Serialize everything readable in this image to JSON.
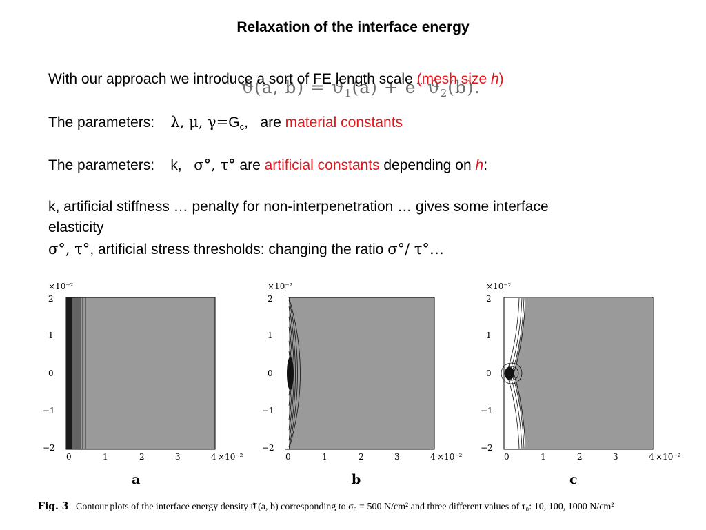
{
  "title": "Relaxation of the interface energy",
  "line1": {
    "text": "With our approach we introduce a sort of FE length scale ",
    "red_open": "(mesh size ",
    "h": "h",
    "red_close": ")"
  },
  "overlay_formula": {
    "lhs": "ϑ(a, b) = ϑ",
    "sub1": "1",
    "mid": "(a) + e",
    "sup": "···",
    "rhs": "ϑ",
    "sub2": "2",
    "end": "(b)."
  },
  "line2": {
    "prefix": "The parameters:",
    "greek": "λ,  μ,  γ=",
    "gc": "G",
    "gc_sub": "c",
    "comma": ",",
    "are": "are ",
    "red": "material constants"
  },
  "line3": {
    "prefix": "The parameters:",
    "k": "k,",
    "greek": "σ°,  τ°",
    "are": " are ",
    "red": "artificial constants",
    "depending": " depending on ",
    "h": "h",
    "colon": ":"
  },
  "line4a": "k, artificial stiffness … penalty for non-interpenetration … gives some interface",
  "line4b": "elasticity",
  "line5": {
    "greek1": "σ°, τ°",
    "text": ", artificial stress thresholds: changing the ratio ",
    "greek2": "σ°/ τ°…"
  },
  "panels": [
    {
      "letter": "a",
      "scale_y": "×10⁻²",
      "scale_x": "×10⁻²",
      "yticks": [
        "2",
        "1",
        "0",
        "−1",
        "−2"
      ],
      "xticks": [
        "0",
        "1",
        "2",
        "3",
        "4"
      ]
    },
    {
      "letter": "b",
      "scale_y": "×10⁻²",
      "scale_x": "×10⁻²",
      "yticks": [
        "2",
        "1",
        "0",
        "−1",
        "−2"
      ],
      "xticks": [
        "0",
        "1",
        "2",
        "3",
        "4"
      ]
    },
    {
      "letter": "c",
      "scale_y": "×10⁻²",
      "scale_x": "×10⁻²",
      "yticks": [
        "2",
        "1",
        "0",
        "−1",
        "−2"
      ],
      "xticks": [
        "0",
        "1",
        "2",
        "3",
        "4"
      ]
    }
  ],
  "caption": {
    "fig": "Fig. 3",
    "text": "Contour plots of the interface energy density ϑ̄ (a, b) corresponding to σ₀ = 500 N/cm² and three different values of τ₀: 10, 100, 1000 N/cm²"
  },
  "colors": {
    "accent_red": "#e8141c",
    "plot_gray": "#9a9a9a"
  }
}
